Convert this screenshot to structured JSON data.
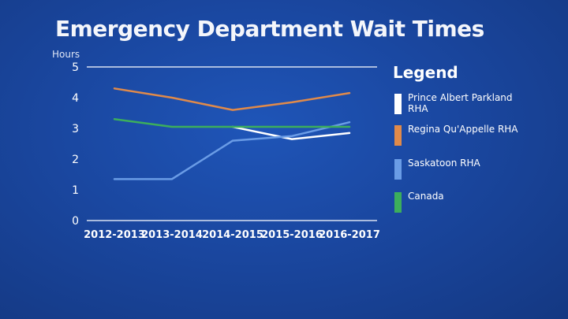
{
  "title": "Emergency Department Wait Times",
  "unit_label": "Hours",
  "legend_title": "Legend",
  "chart_data": {
    "type": "line",
    "title": "Emergency Department Wait Times",
    "xlabel": "",
    "ylabel": "Hours",
    "categories": [
      "2012-2013",
      "2013-2014",
      "2014-2015",
      "2015-2016",
      "2016-2017"
    ],
    "ylim": [
      0,
      5
    ],
    "yticks": [
      0,
      1,
      2,
      3,
      4,
      5
    ],
    "grid": false,
    "legend_position": "right",
    "series": [
      {
        "name": "Prince Albert Parkland RHA",
        "color": "#ffffff",
        "values": [
          null,
          null,
          3.05,
          2.65,
          2.85
        ]
      },
      {
        "name": "Regina Qu'Appelle RHA",
        "color": "#e08a4a",
        "values": [
          4.3,
          4.0,
          3.6,
          3.85,
          4.15
        ]
      },
      {
        "name": "Saskatoon RHA",
        "color": "#6a9ce6",
        "values": [
          1.35,
          1.35,
          2.6,
          2.75,
          3.2
        ]
      },
      {
        "name": "Canada",
        "color": "#3cae5c",
        "values": [
          3.3,
          3.05,
          3.05,
          3.05,
          3.05
        ]
      }
    ]
  }
}
